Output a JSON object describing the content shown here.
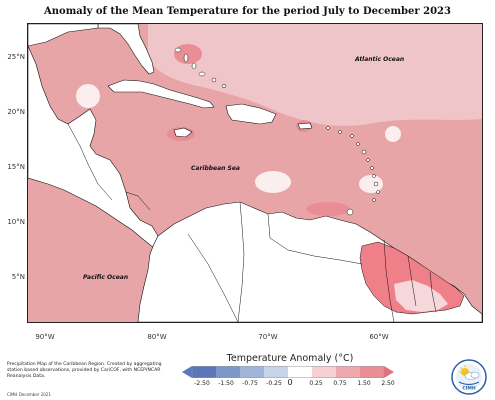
{
  "title": "Anomaly of the Mean Temperature for the period July to December 2023",
  "colors": {
    "ocean_fill": "#e8a5a8",
    "northeast_fill": "#f0c5c9",
    "land": "#ffffff",
    "hotspot": "#ef7f88",
    "mild": "#f6d8db",
    "near_zero": "#fbeeee",
    "coast": "#111111"
  },
  "map": {
    "lat_labels": [
      "25°N",
      "20°N",
      "15°N",
      "10°N",
      "5°N"
    ],
    "lon_labels": [
      "90°W",
      "80°W",
      "70°W",
      "60°W"
    ],
    "ocean_labels": {
      "atlantic": "Atlantic Ocean",
      "caribbean": "Caribbean Sea",
      "pacific": "Pacific Ocean"
    }
  },
  "legend": {
    "title": "Temperature Anomaly (°C)",
    "ticks": [
      "-2.50",
      "-1.50",
      "-0.75",
      "-0.25",
      "0",
      "0.25",
      "0.75",
      "1.50",
      "2.50"
    ],
    "colors": [
      "#5a77b8",
      "#7d97c9",
      "#9fb5d9",
      "#c6d4e8",
      "#ffffff",
      "#f6cfd2",
      "#efa9ae",
      "#ea8e96",
      "#e46f7a"
    ]
  },
  "footer": {
    "note": "Precipitation Map of the Caribbean Region. Created by aggregating station based observations, provided by CariCOF, with NCEP/NCAR Reanalysis Data.",
    "credit": "CIMH December 2021"
  },
  "logo": {
    "text": "CIMH",
    "icon": "cimh-sun-cloud-logo"
  }
}
